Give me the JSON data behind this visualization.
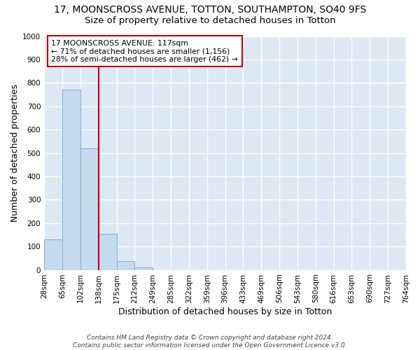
{
  "title1": "17, MOONSCROSS AVENUE, TOTTON, SOUTHAMPTON, SO40 9FS",
  "title2": "Size of property relative to detached houses in Totton",
  "xlabel": "Distribution of detached houses by size in Totton",
  "ylabel": "Number of detached properties",
  "bar_values": [
    130,
    770,
    520,
    155,
    38,
    12,
    0,
    0,
    0,
    0,
    0,
    0,
    0,
    0,
    0,
    0,
    0,
    0,
    0,
    0
  ],
  "x_labels": [
    "28sqm",
    "65sqm",
    "102sqm",
    "138sqm",
    "175sqm",
    "212sqm",
    "249sqm",
    "285sqm",
    "322sqm",
    "359sqm",
    "396sqm",
    "433sqm",
    "469sqm",
    "506sqm",
    "543sqm",
    "580sqm",
    "616sqm",
    "653sqm",
    "690sqm",
    "727sqm",
    "764sqm"
  ],
  "bar_color": "#c5d9ef",
  "bar_edge_color": "#7bafd4",
  "vline_color": "#c00000",
  "annotation_text": "17 MOONSCROSS AVENUE: 117sqm\n← 71% of detached houses are smaller (1,156)\n28% of semi-detached houses are larger (462) →",
  "annotation_box_color": "#c00000",
  "ylim": [
    0,
    1000
  ],
  "yticks": [
    0,
    100,
    200,
    300,
    400,
    500,
    600,
    700,
    800,
    900,
    1000
  ],
  "footer_text": "Contains HM Land Registry data © Crown copyright and database right 2024.\nContains public sector information licensed under the Open Government Licence v3.0.",
  "fig_bg_color": "#ffffff",
  "plot_bg_color": "#dce9f5",
  "grid_color": "#ffffff",
  "title1_fontsize": 10,
  "title2_fontsize": 9.5,
  "axis_label_fontsize": 9,
  "tick_fontsize": 7.5,
  "footer_fontsize": 6.5
}
